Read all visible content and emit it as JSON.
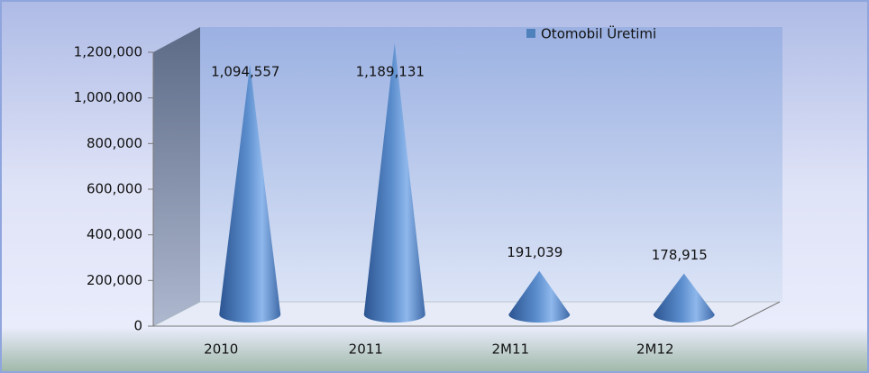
{
  "chart_data": {
    "type": "cone",
    "categories": [
      "2010",
      "2011",
      "2M11",
      "2M12"
    ],
    "series": [
      {
        "name": "Otomobil Üretimi",
        "color": "#4f81bd",
        "values": [
          1094557,
          1189131,
          191039,
          178915
        ],
        "value_labels": [
          "1,094,557",
          "1,189,131",
          "191,039",
          "178,915"
        ]
      }
    ],
    "ylim": [
      0,
      1200000
    ],
    "yticks": [
      0,
      {
        "value": 200000,
        "label": "200,000"
      },
      {
        "value": 400000,
        "label": "400,000"
      },
      {
        "value": 600000,
        "label": "600,000"
      },
      {
        "value": 800000,
        "label": "800,000"
      },
      {
        "value": 1000000,
        "label": "1,000,000"
      },
      {
        "value": 1200000,
        "label": "1,200,000"
      }
    ],
    "legend": "top-right"
  }
}
